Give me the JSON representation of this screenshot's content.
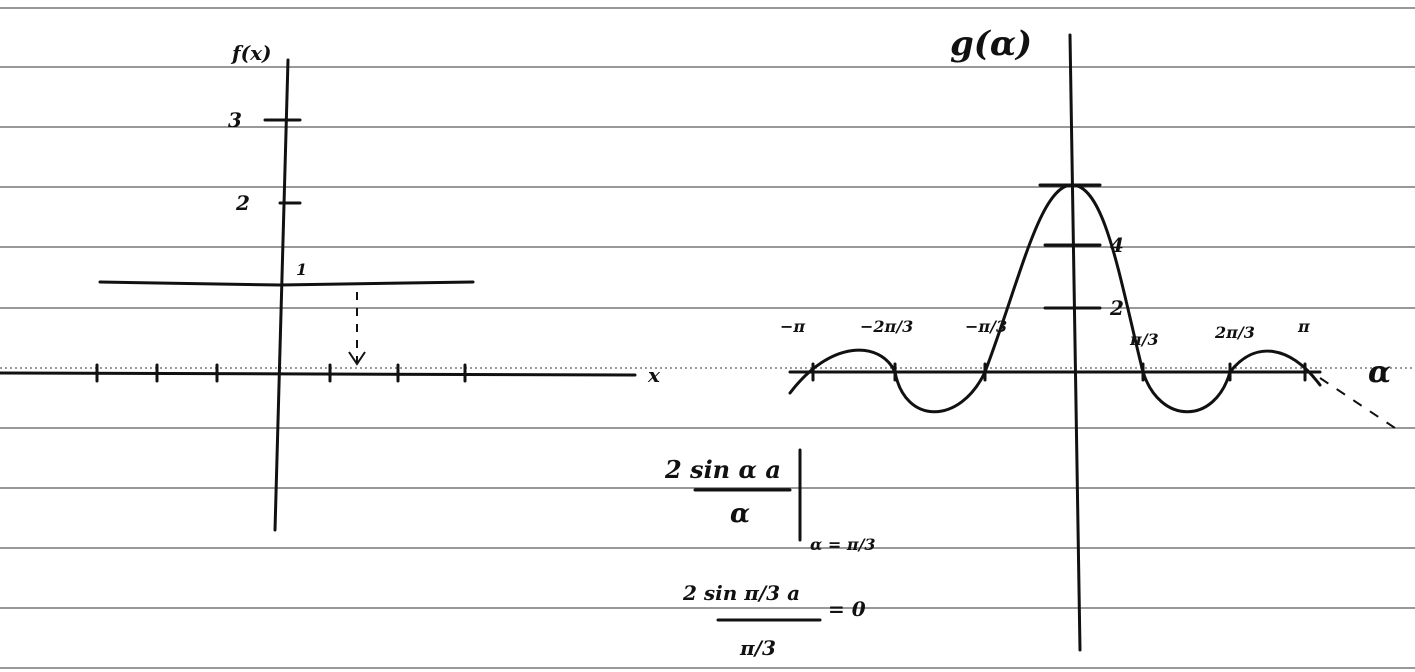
{
  "left_graph": {
    "y_label": "f(x)",
    "y_ticks": [
      "3",
      "2",
      "1"
    ],
    "x_label": "x"
  },
  "right_graph": {
    "y_label": "g(α)",
    "y_ticks": [
      "4",
      "2"
    ],
    "x_ticks": [
      "−π",
      "−2π/3",
      "−π/3",
      "π/3",
      "2π/3",
      "π"
    ],
    "x_label": "α"
  },
  "formulas": [
    {
      "numerator": "2 sin α a",
      "denominator": "α",
      "condition": "α = π/3"
    },
    {
      "numerator": "2 sin π/3 a",
      "denominator": "π/3",
      "result": "= 0"
    }
  ]
}
